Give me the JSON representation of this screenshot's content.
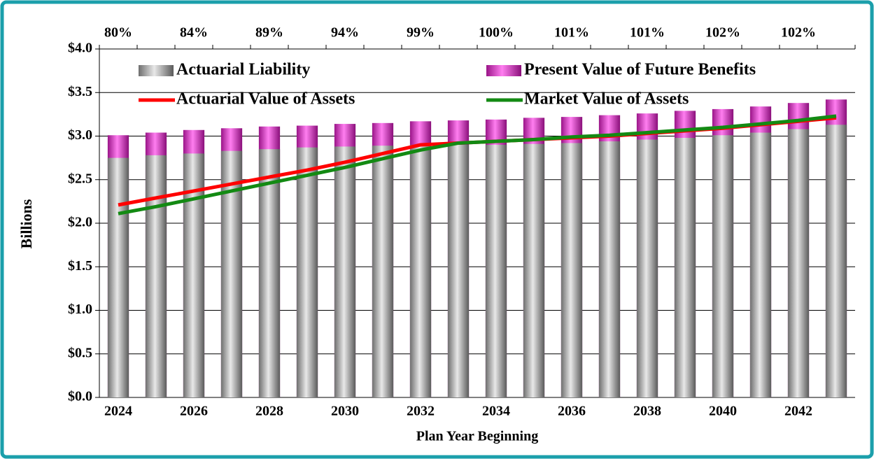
{
  "chart_data": {
    "type": "bar_line",
    "x_label": "Plan Year Beginning",
    "y_label": "Billions",
    "categories": [
      "2024",
      null,
      "2026",
      null,
      "2028",
      null,
      "2030",
      null,
      "2032",
      null,
      "2034",
      null,
      "2036",
      null,
      "2038",
      null,
      "2040",
      null,
      "2042",
      null
    ],
    "top_labels": [
      "80%",
      null,
      "84%",
      null,
      "89%",
      null,
      "94%",
      null,
      "99%",
      null,
      "100%",
      null,
      "101%",
      null,
      "101%",
      null,
      "102%",
      null,
      "102%",
      null
    ],
    "series": [
      {
        "name": "Actuarial Liability",
        "kind": "bar",
        "color": "#a6a6a6",
        "values": [
          2.75,
          2.78,
          2.8,
          2.83,
          2.85,
          2.87,
          2.88,
          2.89,
          2.9,
          2.9,
          2.9,
          2.91,
          2.92,
          2.94,
          2.96,
          2.98,
          3.01,
          3.04,
          3.08,
          3.13
        ]
      },
      {
        "name": "Present Value of Future Benefits",
        "kind": "bar",
        "color": "#e020c8",
        "values": [
          3.01,
          3.04,
          3.07,
          3.09,
          3.11,
          3.12,
          3.14,
          3.15,
          3.17,
          3.18,
          3.19,
          3.21,
          3.22,
          3.24,
          3.26,
          3.29,
          3.31,
          3.34,
          3.38,
          3.42
        ]
      },
      {
        "name": "Actuarial Value of Assets",
        "kind": "line",
        "color": "#ff0000",
        "values": [
          2.21,
          2.29,
          2.37,
          2.45,
          2.53,
          2.61,
          2.7,
          2.8,
          2.9,
          2.92,
          2.94,
          2.96,
          2.98,
          3.0,
          3.03,
          3.06,
          3.09,
          3.13,
          3.17,
          3.21
        ]
      },
      {
        "name": "Market Value of Assets",
        "kind": "line",
        "color": "#138a13",
        "values": [
          2.11,
          2.19,
          2.28,
          2.37,
          2.46,
          2.55,
          2.64,
          2.74,
          2.84,
          2.92,
          2.94,
          2.96,
          2.99,
          3.01,
          3.04,
          3.07,
          3.1,
          3.14,
          3.18,
          3.23
        ]
      }
    ],
    "ylim": [
      0,
      4
    ],
    "yticks": [
      {
        "value": 0,
        "label": "$0.0"
      },
      {
        "value": 0.5,
        "label": "$0.5"
      },
      {
        "value": 1,
        "label": "$1.0"
      },
      {
        "value": 1.5,
        "label": "$1.5"
      },
      {
        "value": 2,
        "label": "$2.0"
      },
      {
        "value": 2.5,
        "label": "$2.5"
      },
      {
        "value": 3,
        "label": "$3.0"
      },
      {
        "value": 3.5,
        "label": "$3.5"
      },
      {
        "value": 4,
        "label": "$4.0"
      }
    ],
    "grid": true
  }
}
